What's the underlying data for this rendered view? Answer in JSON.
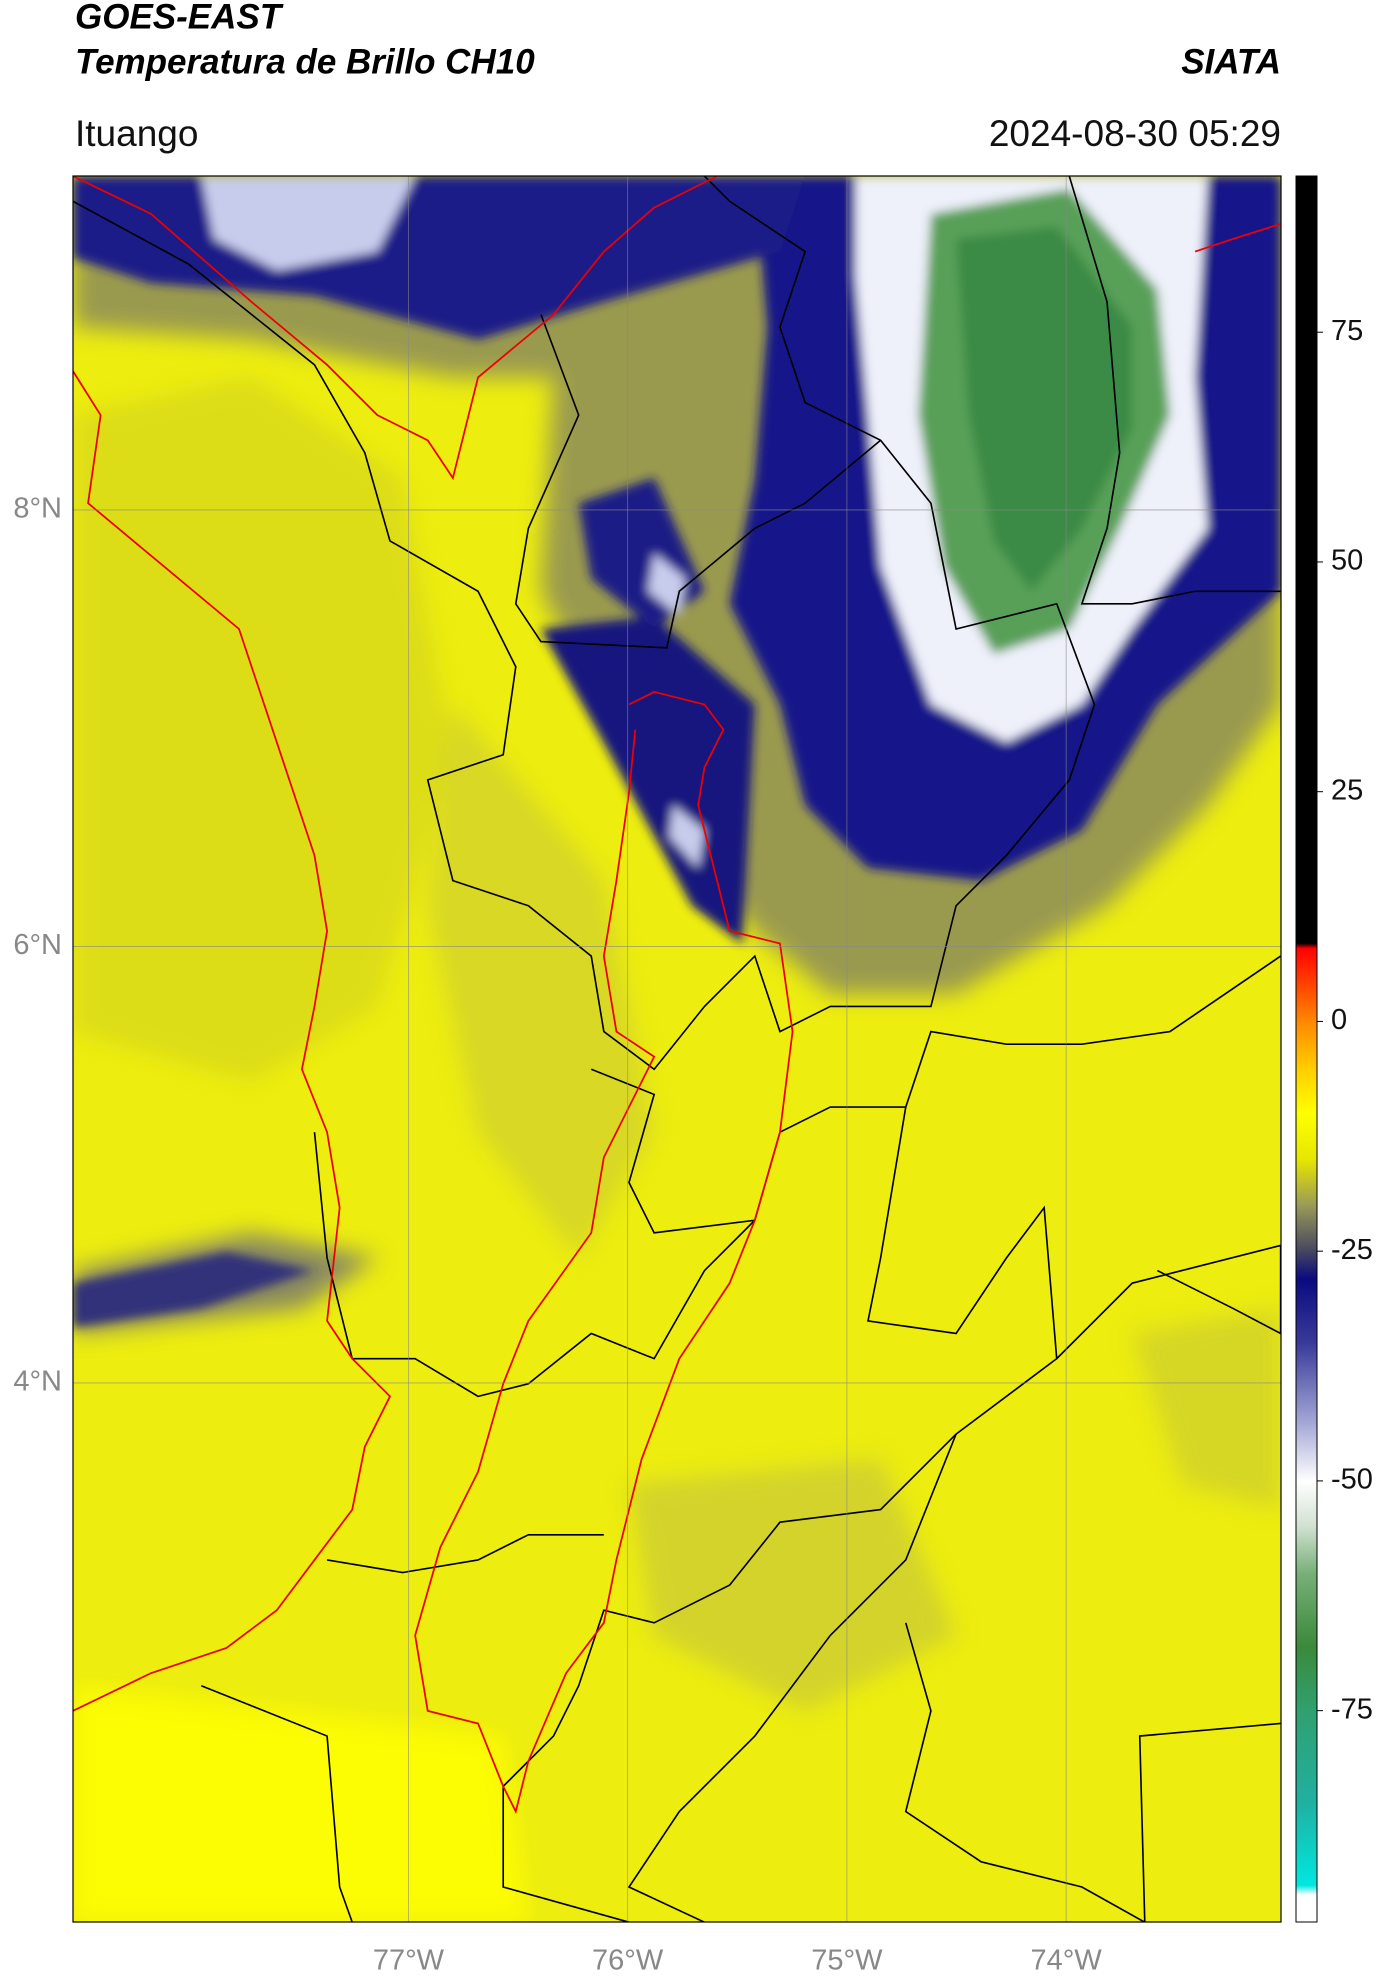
{
  "header": {
    "title": "GOES-EAST",
    "subtitle": "Temperatura de Brillo CH10",
    "source": "SIATA",
    "location": "Ituango",
    "datetime": "2024-08-30 05:29"
  },
  "map": {
    "lon_lim": [
      -78.53,
      -73.02
    ],
    "lat_lim": [
      1.53,
      9.53
    ],
    "grid": true,
    "lon_ticks": [
      {
        "value": -77,
        "label": "77°W"
      },
      {
        "value": -76,
        "label": "76°W"
      },
      {
        "value": -75,
        "label": "75°W"
      },
      {
        "value": -74,
        "label": "74°W"
      }
    ],
    "lat_ticks": [
      {
        "value": 8,
        "label": "8°N"
      },
      {
        "value": 6,
        "label": "6°N"
      },
      {
        "value": 4,
        "label": "4°N"
      }
    ]
  },
  "colorbar": {
    "lim": [
      -98,
      92
    ],
    "ticks": [
      75,
      50,
      25,
      0,
      -25,
      -50,
      -75
    ],
    "colormap": [
      {
        "value": -98,
        "color": "#ffffff"
      },
      {
        "value": -95,
        "color": "#ffffff"
      },
      {
        "value": -94,
        "color": "#00e8e0"
      },
      {
        "value": -85,
        "color": "#20b0a0"
      },
      {
        "value": -75,
        "color": "#30a070"
      },
      {
        "value": -68,
        "color": "#3a8a3a"
      },
      {
        "value": -60,
        "color": "#78b078"
      },
      {
        "value": -55,
        "color": "#d0e0d0"
      },
      {
        "value": -50,
        "color": "#ffffff"
      },
      {
        "value": -44,
        "color": "#a8acd8"
      },
      {
        "value": -35,
        "color": "#3a3a9a"
      },
      {
        "value": -28,
        "color": "#0a0a80"
      },
      {
        "value": -25,
        "color": "#454560"
      },
      {
        "value": -20,
        "color": "#9a9a58"
      },
      {
        "value": -15,
        "color": "#e6e600"
      },
      {
        "value": -10,
        "color": "#ffff00"
      },
      {
        "value": -5,
        "color": "#ffcc00"
      },
      {
        "value": 0,
        "color": "#ff8800"
      },
      {
        "value": 8,
        "color": "#ff0000"
      },
      {
        "value": 8.5,
        "color": "#000000"
      },
      {
        "value": 92,
        "color": "#000000"
      }
    ]
  }
}
